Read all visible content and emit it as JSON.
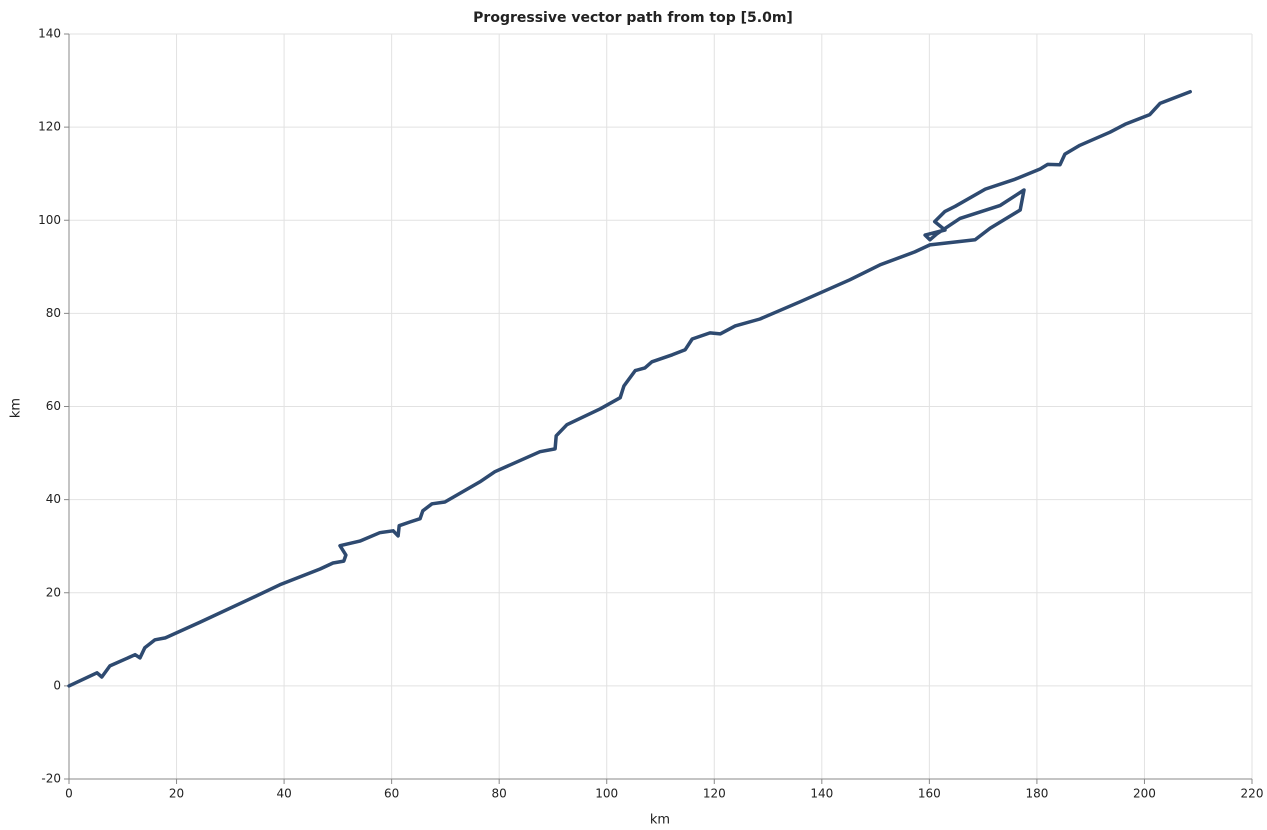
{
  "chart_data": {
    "type": "line",
    "title": "Progressive vector path from top [5.0m]",
    "x_label": "km",
    "y_label": "km",
    "color": "#2e4a70",
    "grid": true,
    "xlim": [
      0,
      220
    ],
    "ylim": [
      -20,
      140
    ],
    "xticks": [
      0,
      20,
      40,
      60,
      80,
      100,
      120,
      140,
      160,
      180,
      200,
      220
    ],
    "yticks": [
      -20,
      0,
      20,
      40,
      60,
      80,
      100,
      120,
      140
    ],
    "x": [
      0,
      5.2,
      6.1,
      7.6,
      12.3,
      13.2,
      14.1,
      16,
      17.9,
      24.4,
      33.7,
      39.2,
      46.7,
      49.1,
      51.1,
      51.5,
      50.4,
      54.1,
      57.8,
      60.3,
      61.2,
      61.4,
      63.4,
      65.3,
      65.8,
      67.5,
      69.9,
      76.4,
      79.2,
      87.6,
      90.4,
      90.6,
      92.6,
      98.8,
      102.5,
      103.2,
      105.3,
      107.1,
      108.4,
      112.2,
      114.6,
      115.9,
      119.2,
      121.1,
      123.9,
      128.5,
      136,
      145.2,
      150.8,
      157.3,
      160.1,
      168.5,
      171.3,
      176.9,
      177.6,
      173.2,
      165.7,
      161.4,
      160.1,
      159.2,
      162.9,
      161,
      162.9,
      164.8,
      170.4,
      175.9,
      180.6,
      182,
      184.3,
      185.2,
      188,
      193.6,
      196.4,
      201,
      202.9,
      208.5
    ],
    "values": [
      0,
      2.8,
      1.9,
      4.3,
      6.7,
      6.0,
      8.2,
      9.9,
      10.3,
      13.7,
      18.7,
      21.7,
      25.1,
      26.4,
      26.8,
      28.1,
      30.1,
      31.1,
      32.9,
      33.3,
      32.2,
      34.4,
      35.2,
      35.9,
      37.6,
      39.1,
      39.5,
      43.8,
      46,
      50.3,
      50.9,
      53.7,
      56.1,
      59.5,
      61.9,
      64.4,
      67.7,
      68.3,
      69.6,
      71.1,
      72.2,
      74.5,
      75.8,
      75.6,
      77.3,
      78.8,
      82.5,
      87.2,
      90.4,
      93.2,
      94.7,
      95.8,
      98.3,
      102.2,
      106.5,
      103.2,
      100.4,
      97.1,
      95.8,
      96.8,
      97.9,
      99.7,
      101.9,
      103,
      106.7,
      108.8,
      111,
      112,
      111.9,
      114.2,
      116.1,
      118.9,
      120.6,
      122.7,
      125.1,
      127.6
    ]
  }
}
